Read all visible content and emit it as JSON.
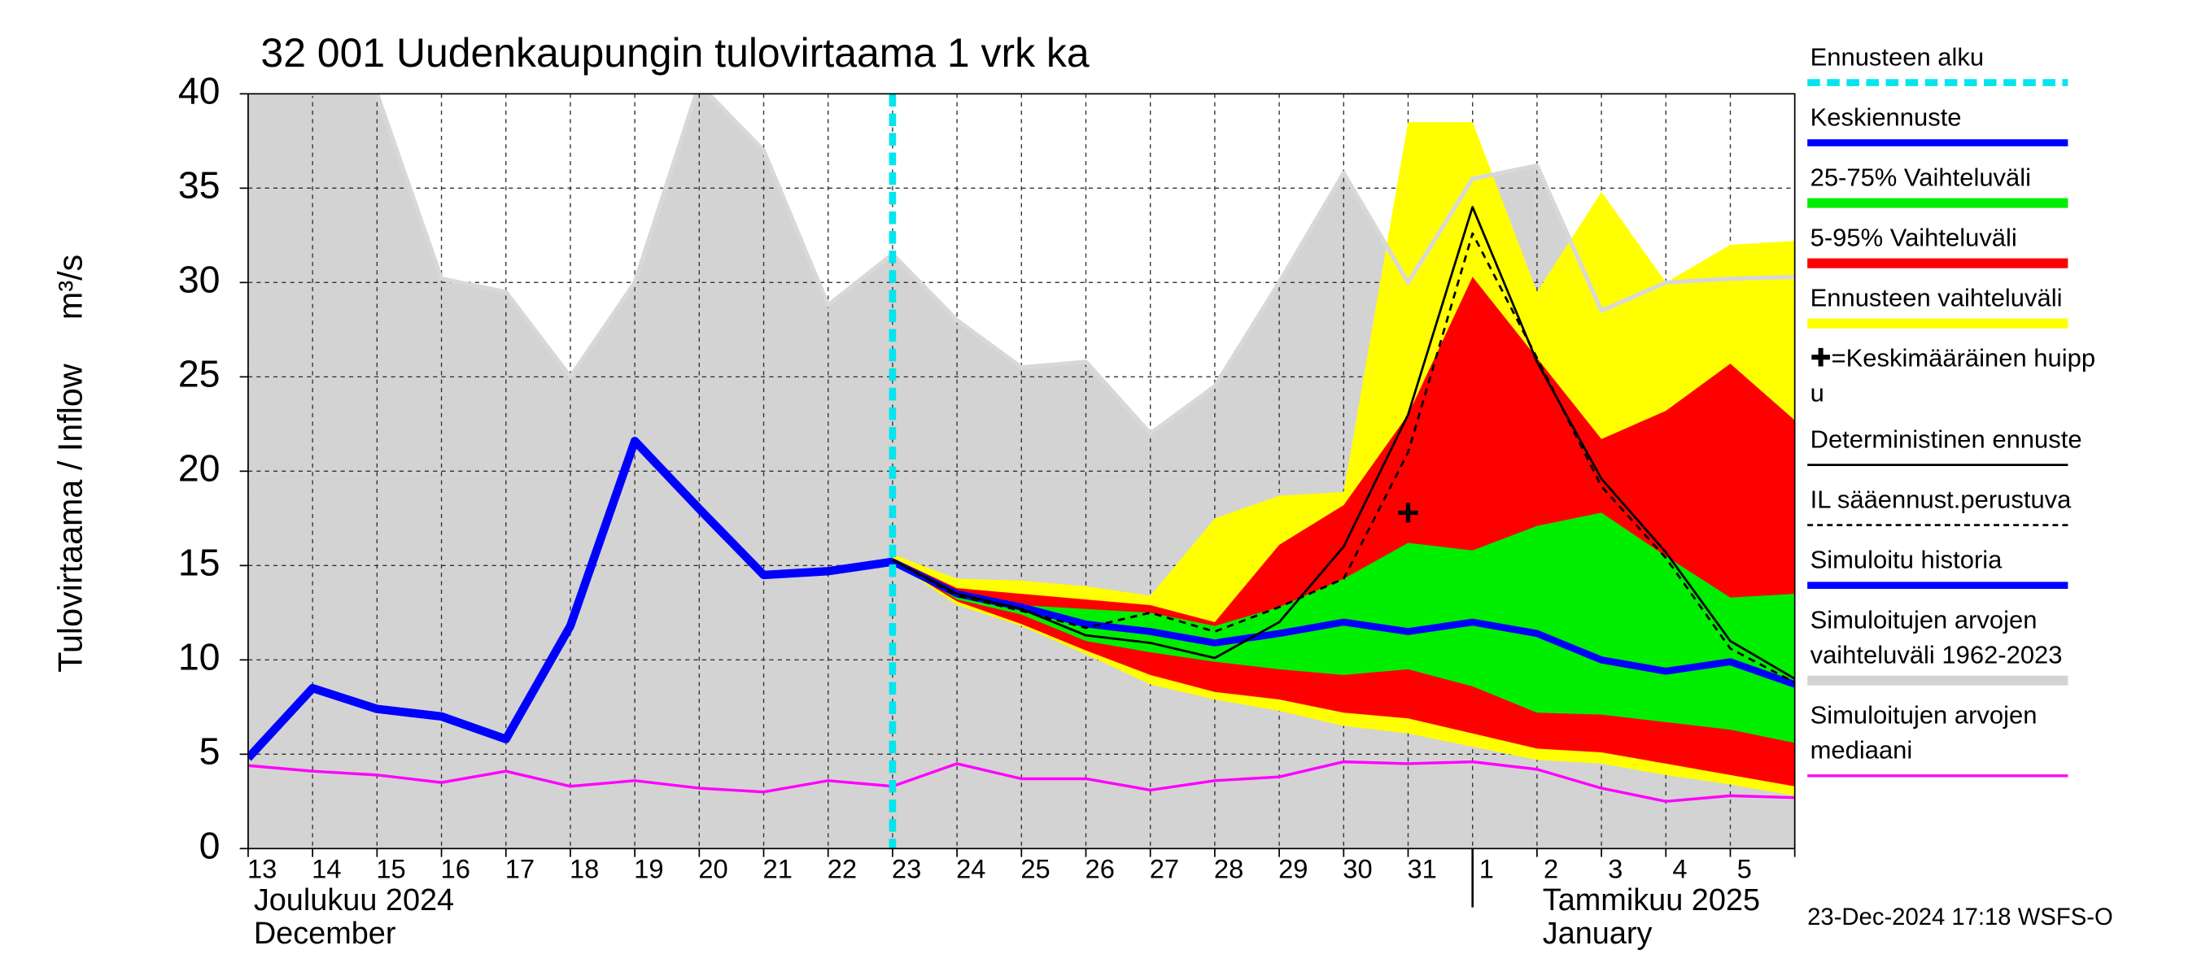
{
  "chart_data": {
    "type": "area-line",
    "title": "32 001 Uudenkaupungin tulovirtaama 1 vrk ka",
    "ylabel": "Tulovirtaama / Inflow",
    "yunit": "m³/s",
    "categories": [
      "13",
      "14",
      "15",
      "16",
      "17",
      "18",
      "19",
      "20",
      "21",
      "22",
      "23",
      "24",
      "25",
      "26",
      "27",
      "28",
      "29",
      "30",
      "31",
      "1",
      "2",
      "3",
      "4",
      "5",
      null
    ],
    "xlim": [
      0,
      24
    ],
    "ylim": [
      0,
      40
    ],
    "yticks": [
      0,
      5,
      10,
      15,
      20,
      25,
      30,
      35,
      40
    ],
    "grid": true,
    "forecast_start": 10,
    "series": [
      {
        "kind": "band",
        "color": "#d3d3d3",
        "edge_color": "#d8d8d8",
        "upper": [
          40,
          40,
          40,
          30.2,
          29.5,
          25,
          30,
          40.5,
          37,
          28.8,
          31.5,
          28,
          25.5,
          25.8,
          22,
          24.5,
          30,
          35.8,
          30,
          35.5,
          36.2,
          28.5,
          30,
          30.2,
          30.3
        ],
        "lower": [
          0,
          0,
          0,
          0,
          0,
          0,
          0,
          0,
          0,
          0,
          0,
          0,
          0,
          0,
          0,
          0,
          0,
          0,
          0,
          0,
          0,
          0,
          0,
          0,
          0
        ]
      },
      {
        "kind": "band",
        "color": "#ffff00",
        "upper": [
          null,
          null,
          null,
          null,
          null,
          null,
          null,
          null,
          null,
          null,
          15.6,
          14.3,
          14.2,
          13.9,
          13.4,
          17.5,
          18.7,
          18.9,
          38.5,
          38.5,
          29.5,
          34.8,
          30,
          32,
          32.2
        ],
        "lower": [
          null,
          null,
          null,
          null,
          null,
          null,
          null,
          null,
          null,
          null,
          15.2,
          12.9,
          11.8,
          10.3,
          8.7,
          7.9,
          7.3,
          6.5,
          6.1,
          5.4,
          4.7,
          4.5,
          3.9,
          3.4,
          2.8
        ]
      },
      {
        "kind": "band",
        "color": "#ff0000",
        "upper": [
          null,
          null,
          null,
          null,
          null,
          null,
          null,
          null,
          null,
          null,
          15.4,
          13.8,
          13.5,
          13.2,
          12.9,
          12,
          16.1,
          18.2,
          23,
          30.3,
          26,
          21.7,
          23.2,
          25.7,
          22.7
        ],
        "lower": [
          null,
          null,
          null,
          null,
          null,
          null,
          null,
          null,
          null,
          null,
          15.2,
          13.1,
          11.9,
          10.5,
          9.2,
          8.3,
          7.9,
          7.2,
          6.9,
          6.1,
          5.3,
          5.1,
          4.5,
          3.9,
          3.3
        ]
      },
      {
        "kind": "band",
        "color": "#00ee00",
        "upper": [
          null,
          null,
          null,
          null,
          null,
          null,
          null,
          null,
          null,
          null,
          15.3,
          13.6,
          12.9,
          12.7,
          12.5,
          11.8,
          12.8,
          14.3,
          16.2,
          15.8,
          17.1,
          17.8,
          15.5,
          13.3,
          13.5
        ],
        "lower": [
          null,
          null,
          null,
          null,
          null,
          null,
          null,
          null,
          null,
          null,
          15.3,
          13.2,
          12.4,
          11,
          10.4,
          9.9,
          9.5,
          9.2,
          9.5,
          8.6,
          7.2,
          7.1,
          6.7,
          6.3,
          5.6
        ]
      },
      {
        "kind": "line",
        "color": "#ff00ff",
        "width": 2,
        "values": [
          4.4,
          4.1,
          3.9,
          3.5,
          4.1,
          3.3,
          3.6,
          3.2,
          3,
          3.6,
          3.3,
          4.5,
          3.7,
          3.7,
          3.1,
          3.6,
          3.8,
          4.6,
          4.5,
          4.6,
          4.2,
          3.2,
          2.5,
          2.8,
          2.7
        ]
      },
      {
        "kind": "line",
        "color": "#0000ff",
        "width": 6,
        "values": [
          4.8,
          8.5,
          7.4,
          7,
          5.8,
          11.8,
          21.6,
          18,
          14.5,
          14.7,
          15.2,
          null,
          null,
          null,
          null,
          null,
          null,
          null,
          null,
          null,
          null,
          null,
          null,
          null,
          null
        ]
      },
      {
        "kind": "line",
        "color": "#0000ff",
        "width": 5,
        "values": [
          null,
          null,
          null,
          null,
          null,
          null,
          null,
          null,
          null,
          null,
          15.2,
          13.5,
          12.8,
          11.9,
          11.5,
          10.9,
          11.4,
          12,
          11.5,
          12,
          11.4,
          10,
          9.4,
          9.9,
          8.7
        ]
      },
      {
        "kind": "line",
        "color": "#000000",
        "width": 1.6,
        "values": [
          null,
          null,
          null,
          null,
          null,
          null,
          null,
          null,
          null,
          null,
          15.3,
          13.5,
          12.7,
          11.3,
          10.9,
          10.1,
          12,
          16,
          23,
          34,
          25.8,
          19.6,
          15.7,
          11,
          9
        ]
      },
      {
        "kind": "line",
        "color": "#000000",
        "width": 1.6,
        "dashed": true,
        "values": [
          null,
          null,
          null,
          null,
          null,
          null,
          null,
          null,
          null,
          null,
          15.3,
          13.4,
          12.6,
          11.7,
          12.5,
          11.5,
          12.8,
          14.3,
          21,
          32.6,
          26,
          19.2,
          15.4,
          10.6,
          8.8
        ]
      }
    ],
    "peak": {
      "x": 18,
      "y": 17.8
    },
    "legend": [
      {
        "lines": [
          "Ennusteen alku"
        ],
        "color": "#00e5ee",
        "dashed": true,
        "width": 5
      },
      {
        "lines": [
          "Keskiennuste"
        ],
        "color": "#0000ff",
        "width": 5
      },
      {
        "lines": [
          "25-75% Vaihteluväli"
        ],
        "color": "#00ee00",
        "width": 7
      },
      {
        "lines": [
          "5-95% Vaihteluväli"
        ],
        "color": "#ff0000",
        "width": 7
      },
      {
        "lines": [
          "Ennusteen vaihteluväli"
        ],
        "color": "#ffff00",
        "width": 7
      },
      {
        "lines": [
          "✚=Keskimääräinen huipp",
          "u"
        ]
      },
      {
        "lines": [
          "Deterministinen ennuste"
        ],
        "color": "#000000",
        "width": 1.6
      },
      {
        "lines": [
          "IL sääennust.perustuva"
        ],
        "color": "#000000",
        "dashed": true,
        "width": 1.6
      },
      {
        "lines": [
          "Simuloitu historia"
        ],
        "color": "#0000ff",
        "width": 5
      },
      {
        "lines": [
          "Simuloitujen arvojen",
          "vaihteluväli 1962-2023"
        ],
        "color": "#d3d3d3",
        "width": 7
      },
      {
        "lines": [
          "Simuloitujen arvojen",
          "mediaani"
        ],
        "color": "#ff00ff",
        "width": 2
      }
    ],
    "months": [
      {
        "lines": [
          "Joulukuu  2024",
          "December"
        ],
        "x": 0
      },
      {
        "lines": [
          "Tammikuu  2025",
          "January"
        ],
        "x": 19
      }
    ],
    "timestamp": "23-Dec-2024 17:18 WSFS-O"
  }
}
